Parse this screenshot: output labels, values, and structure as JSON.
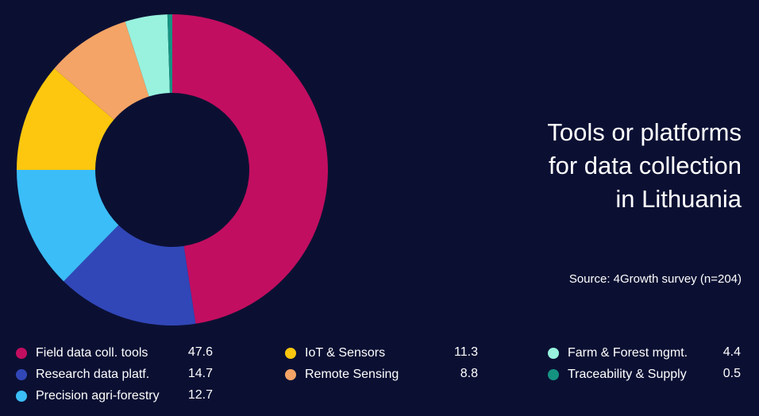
{
  "chart_data": {
    "type": "pie",
    "title": "Tools or platforms for data collection in Lithuania",
    "title_lines": [
      "Tools or platforms",
      "for data collection",
      "in Lithuania"
    ],
    "source": "Source: 4Growth survey (n=204)",
    "donut": true,
    "legend_position": "bottom",
    "slices": [
      {
        "label": "Field data coll. tools",
        "value": 47.6,
        "display": "47.6",
        "color": "#c20e60"
      },
      {
        "label": "Research data platf.",
        "value": 14.7,
        "display": "14.7",
        "color": "#3147b8"
      },
      {
        "label": "Precision agri-forestry",
        "value": 12.7,
        "display": "12.7",
        "color": "#3bbdf7"
      },
      {
        "label": "IoT & Sensors",
        "value": 11.3,
        "display": "11.3",
        "color": "#fcc70e"
      },
      {
        "label": "Remote Sensing",
        "value": 8.8,
        "display": "8.8",
        "color": "#f4a466"
      },
      {
        "label": "Farm & Forest mgmt.",
        "value": 4.4,
        "display": "4.4",
        "color": "#98f2de"
      },
      {
        "label": "Traceability & Supply",
        "value": 0.5,
        "display": "0.5",
        "color": "#159381"
      }
    ]
  }
}
